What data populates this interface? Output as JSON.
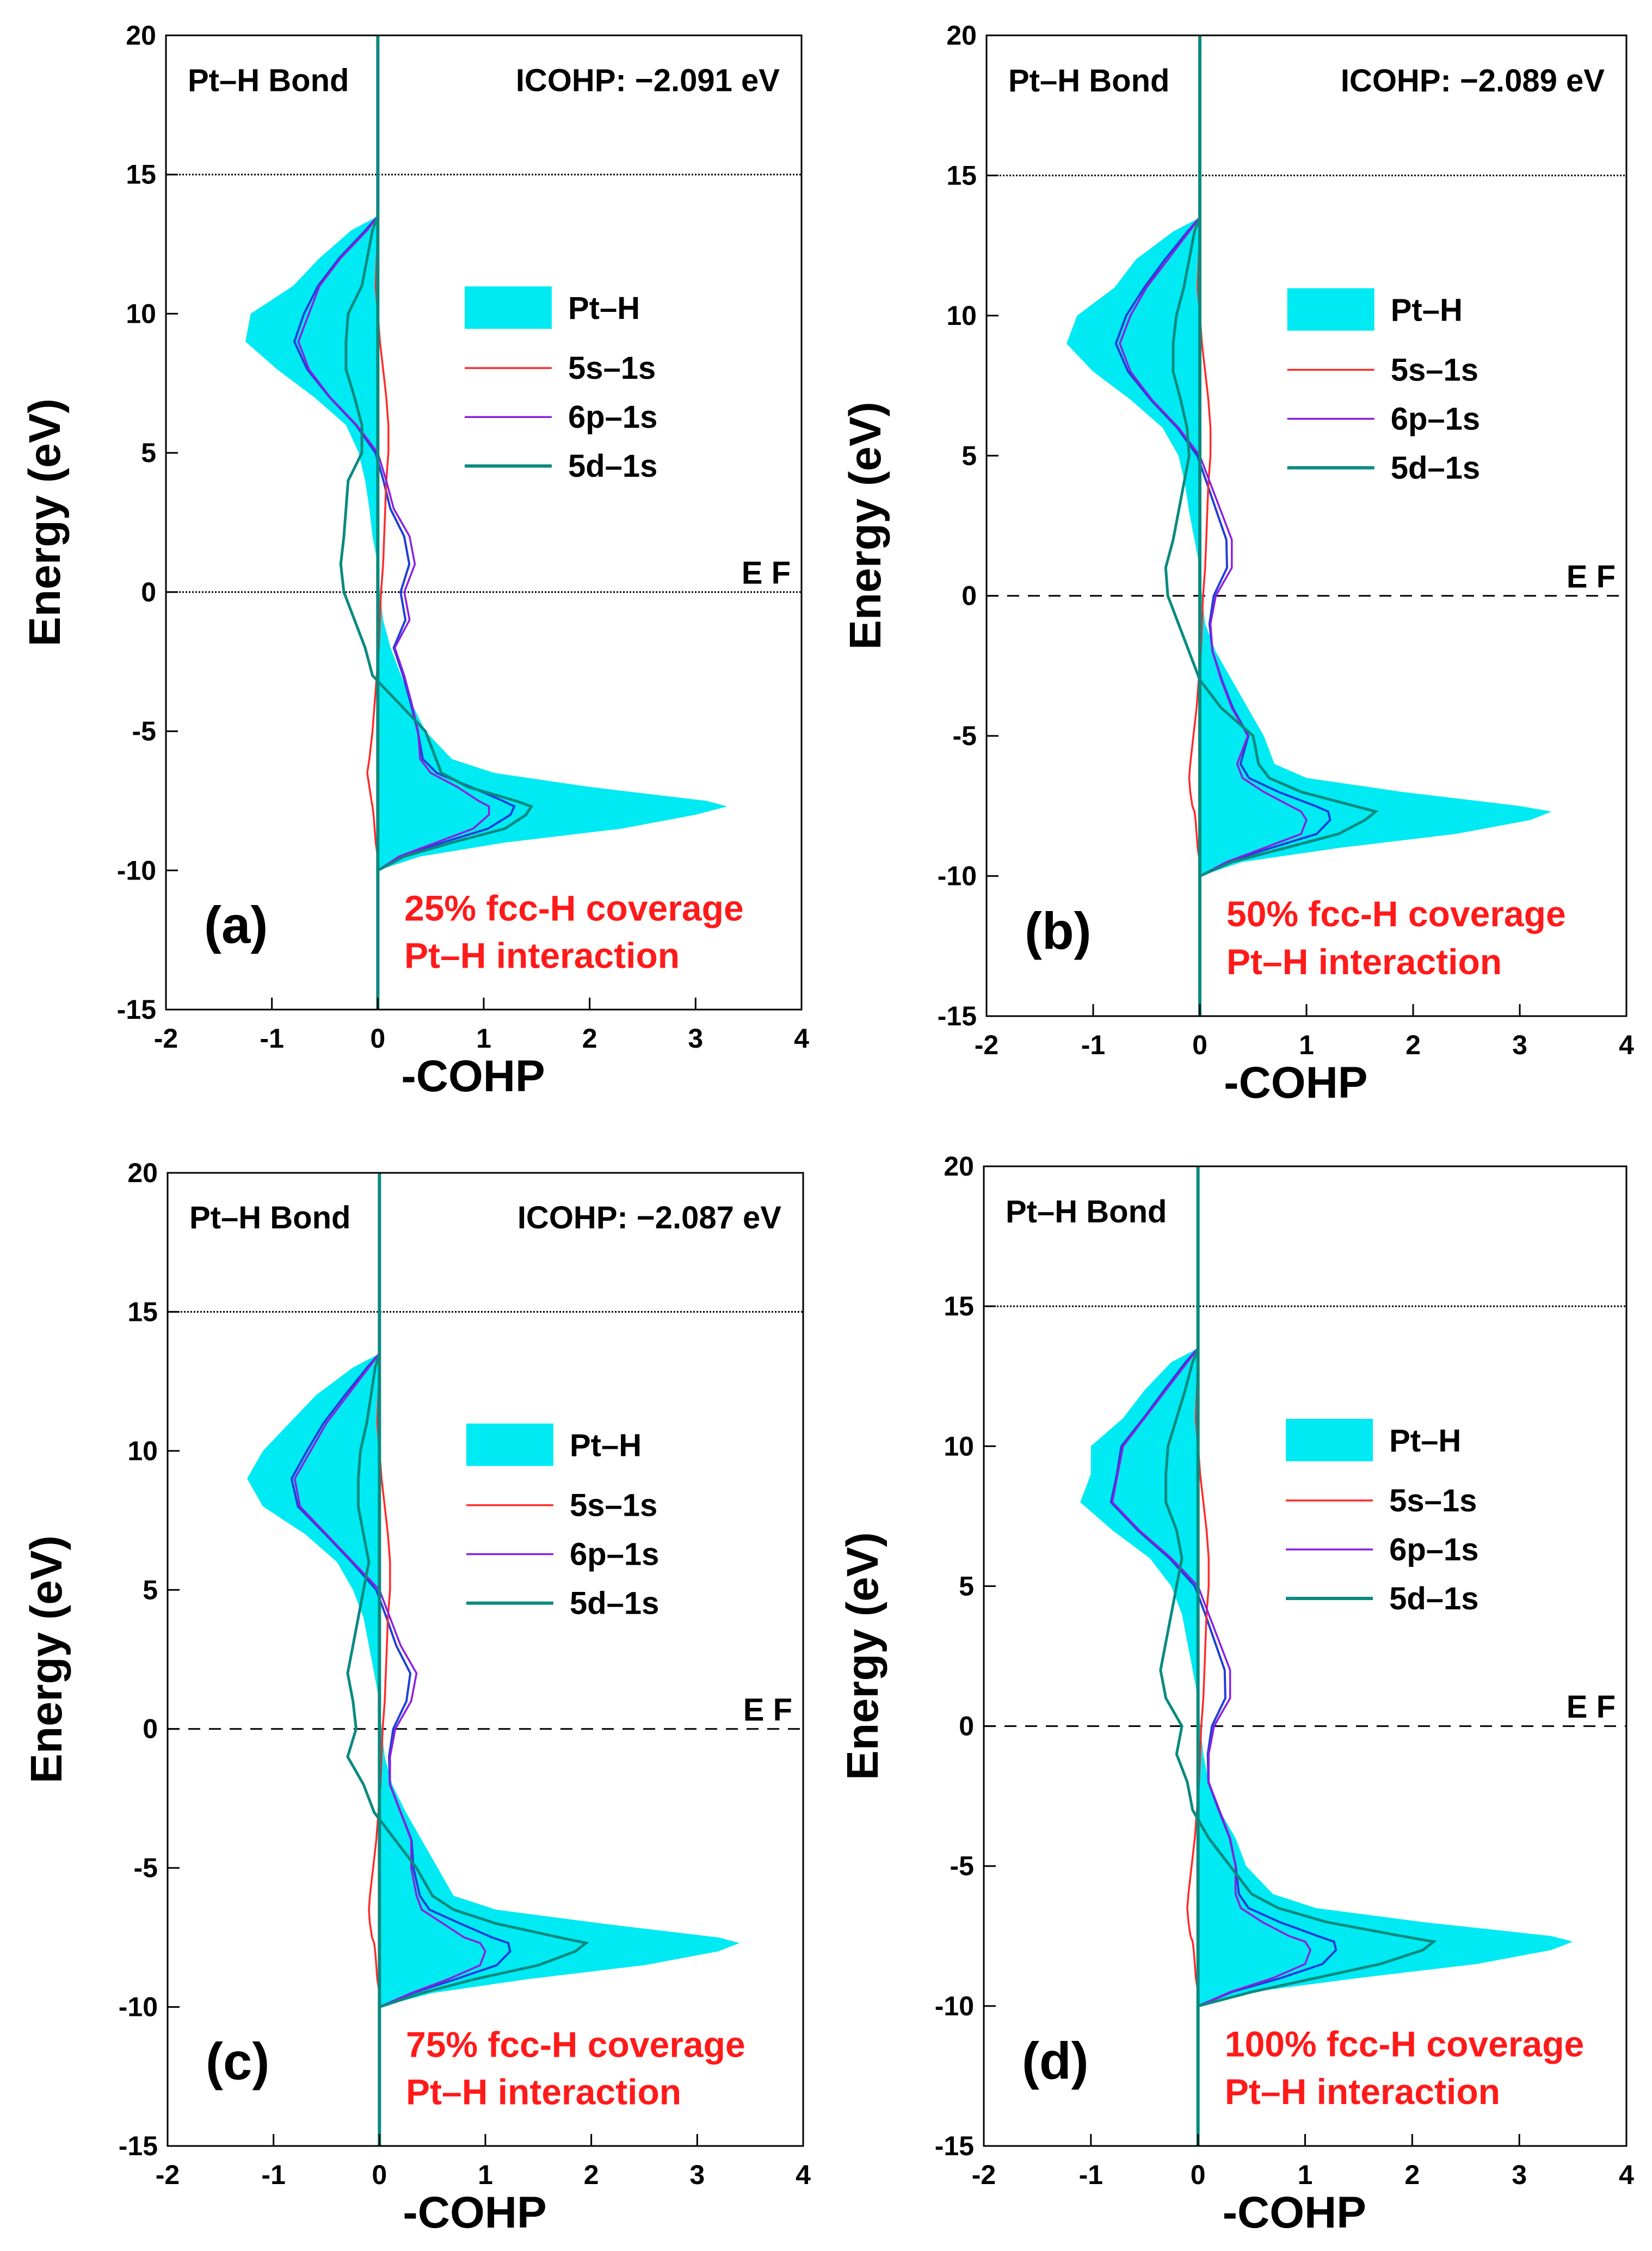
{
  "figure": {
    "colors": {
      "fill": "#00eaf3",
      "s": "#ff2b2b",
      "p": "#8a1fe0",
      "d": "#0a8a80",
      "pt_line": "#1f3fd8",
      "caption": "#ff1a1a",
      "axis": "#000000"
    }
  },
  "chart_data": [
    {
      "id": "a",
      "type": "line",
      "panel_label": "(a)",
      "bond_label": "Pt–H Bond",
      "icohp": "ICOHP: −2.091 eV",
      "coverage": "25% fcc-H coverage",
      "interaction": "Pt–H interaction",
      "ef_label": "E F",
      "xlabel": "-COHP",
      "ylabel": "Energy (eV)",
      "xlim": [
        -2,
        4
      ],
      "ylim": [
        -15,
        20
      ],
      "xticks": [
        "-2",
        "-1",
        "0",
        "1",
        "2",
        "3",
        "4"
      ],
      "yticks": [
        "-15",
        "-10",
        "-5",
        "0",
        "5",
        "10",
        "15",
        "20"
      ],
      "ref_lines": [
        {
          "y": 15,
          "style": "dotted"
        },
        {
          "y": 0,
          "style": "dotted"
        }
      ],
      "legend": [
        {
          "label": "Pt–H",
          "kind": "fill"
        },
        {
          "label": "5s–1s",
          "kind": "s"
        },
        {
          "label": "6p–1s",
          "kind": "p"
        },
        {
          "label": "5d–1s",
          "kind": "d"
        }
      ],
      "energy": [
        -10,
        -9.5,
        -9,
        -8.5,
        -8,
        -7.7,
        -7.5,
        -7,
        -6.5,
        -6,
        -5,
        -4,
        -3,
        -2,
        -1,
        0,
        1,
        2,
        3,
        4,
        5,
        6,
        7,
        8,
        9,
        10,
        11,
        12,
        13,
        13.5
      ],
      "series": [
        {
          "name": "Pt–H",
          "values": [
            0,
            0.4,
            1.2,
            2.3,
            3.0,
            3.3,
            3.1,
            2.0,
            1.1,
            0.7,
            0.45,
            0.32,
            0.22,
            0.12,
            0.05,
            0.02,
            0,
            -0.05,
            -0.08,
            -0.12,
            -0.18,
            -0.3,
            -0.6,
            -0.95,
            -1.25,
            -1.2,
            -0.8,
            -0.55,
            -0.25,
            0
          ]
        },
        {
          "name": "5s–1s",
          "values": [
            0,
            0,
            -0.02,
            -0.03,
            -0.04,
            -0.05,
            -0.06,
            -0.08,
            -0.1,
            -0.08,
            -0.05,
            -0.03,
            -0.01,
            0.01,
            0.02,
            0.03,
            0.05,
            0.06,
            0.07,
            0.08,
            0.1,
            0.1,
            0.08,
            0.05,
            0.02,
            0,
            -0.02,
            -0.01,
            0,
            0
          ]
        },
        {
          "name": "6p–1s",
          "values": [
            0,
            0.2,
            0.55,
            0.9,
            1.05,
            1.05,
            0.95,
            0.75,
            0.5,
            0.4,
            0.38,
            0.32,
            0.25,
            0.16,
            0.3,
            0.25,
            0.35,
            0.3,
            0.15,
            0.08,
            0,
            -0.2,
            -0.45,
            -0.65,
            -0.75,
            -0.65,
            -0.55,
            -0.35,
            -0.1,
            0
          ]
        },
        {
          "name": "5d–1s",
          "values": [
            0,
            0.25,
            0.7,
            1.2,
            1.4,
            1.45,
            1.3,
            0.85,
            0.6,
            0.55,
            0.45,
            0.2,
            -0.05,
            -0.12,
            -0.22,
            -0.32,
            -0.35,
            -0.32,
            -0.3,
            -0.28,
            -0.15,
            -0.15,
            -0.22,
            -0.3,
            -0.3,
            -0.28,
            -0.15,
            -0.1,
            -0.05,
            0
          ]
        }
      ]
    },
    {
      "id": "b",
      "type": "line",
      "panel_label": "(b)",
      "bond_label": "Pt–H Bond",
      "icohp": "ICOHP: −2.089 eV",
      "coverage": "50% fcc-H coverage",
      "interaction": "Pt–H interaction",
      "ef_label": "E F",
      "xlabel": "-COHP",
      "ylabel": "Energy (eV)",
      "xlim": [
        -2,
        4
      ],
      "ylim": [
        -15,
        20
      ],
      "xticks": [
        "-2",
        "-1",
        "0",
        "1",
        "2",
        "3",
        "4"
      ],
      "yticks": [
        "-15",
        "-10",
        "-5",
        "0",
        "5",
        "10",
        "15",
        "20"
      ],
      "ref_lines": [
        {
          "y": 15,
          "style": "dotted"
        },
        {
          "y": 0,
          "style": "dashed"
        }
      ],
      "legend": [
        {
          "label": "Pt–H",
          "kind": "fill"
        },
        {
          "label": "5s–1s",
          "kind": "s"
        },
        {
          "label": "6p–1s",
          "kind": "p"
        },
        {
          "label": "5d–1s",
          "kind": "d"
        }
      ],
      "energy": [
        -10,
        -9.5,
        -9,
        -8.5,
        -8,
        -7.7,
        -7.5,
        -7,
        -6.5,
        -6,
        -5,
        -4,
        -3,
        -2,
        -1,
        0,
        1,
        2,
        3,
        4,
        5,
        6,
        7,
        8,
        9,
        10,
        11,
        12,
        13,
        13.5
      ],
      "series": [
        {
          "name": "Pt–H",
          "values": [
            0,
            0.4,
            1.3,
            2.4,
            3.1,
            3.3,
            3.0,
            1.9,
            1.0,
            0.7,
            0.6,
            0.45,
            0.3,
            0.15,
            0.05,
            0.02,
            0,
            -0.05,
            -0.1,
            -0.14,
            -0.2,
            -0.35,
            -0.65,
            -1.0,
            -1.25,
            -1.15,
            -0.8,
            -0.6,
            -0.25,
            0
          ]
        },
        {
          "name": "5s–1s",
          "values": [
            0,
            0,
            -0.02,
            -0.03,
            -0.04,
            -0.05,
            -0.07,
            -0.09,
            -0.1,
            -0.09,
            -0.06,
            -0.03,
            -0.01,
            0.01,
            0.02,
            0.03,
            0.05,
            0.06,
            0.07,
            0.08,
            0.1,
            0.1,
            0.08,
            0.05,
            0.02,
            0,
            -0.02,
            -0.01,
            0,
            0
          ]
        },
        {
          "name": "6p–1s",
          "values": [
            0,
            0.25,
            0.6,
            0.95,
            1.0,
            0.95,
            0.85,
            0.6,
            0.4,
            0.35,
            0.45,
            0.3,
            0.2,
            0.12,
            0.1,
            0.15,
            0.3,
            0.3,
            0.2,
            0.1,
            0,
            -0.2,
            -0.45,
            -0.65,
            -0.75,
            -0.65,
            -0.5,
            -0.3,
            -0.1,
            0
          ]
        },
        {
          "name": "5d–1s",
          "values": [
            0,
            0.3,
            0.8,
            1.3,
            1.55,
            1.65,
            1.45,
            0.95,
            0.65,
            0.55,
            0.5,
            0.2,
            0,
            -0.1,
            -0.2,
            -0.3,
            -0.32,
            -0.25,
            -0.2,
            -0.15,
            -0.1,
            -0.12,
            -0.18,
            -0.25,
            -0.25,
            -0.22,
            -0.15,
            -0.1,
            -0.05,
            0
          ]
        }
      ]
    },
    {
      "id": "c",
      "type": "line",
      "panel_label": "(c)",
      "bond_label": "Pt–H Bond",
      "icohp": "ICOHP: −2.087 eV",
      "coverage": "75% fcc-H coverage",
      "interaction": "Pt–H interaction",
      "ef_label": "E F",
      "xlabel": "-COHP",
      "ylabel": "Energy (eV)",
      "xlim": [
        -2,
        4
      ],
      "ylim": [
        -15,
        20
      ],
      "xticks": [
        "-2",
        "-1",
        "0",
        "1",
        "2",
        "3",
        "4"
      ],
      "yticks": [
        "-15",
        "-10",
        "-5",
        "0",
        "5",
        "10",
        "15",
        "20"
      ],
      "ref_lines": [
        {
          "y": 15,
          "style": "dotted"
        },
        {
          "y": 0,
          "style": "dashed"
        }
      ],
      "legend": [
        {
          "label": "Pt–H",
          "kind": "fill"
        },
        {
          "label": "5s–1s",
          "kind": "s"
        },
        {
          "label": "6p–1s",
          "kind": "p"
        },
        {
          "label": "5d–1s",
          "kind": "d"
        }
      ],
      "energy": [
        -10,
        -9.5,
        -9,
        -8.5,
        -8,
        -7.7,
        -7.5,
        -7,
        -6.5,
        -6,
        -5,
        -4,
        -3,
        -2,
        -1,
        0,
        1,
        2,
        3,
        4,
        5,
        6,
        7,
        8,
        9,
        10,
        11,
        12,
        13,
        13.5
      ],
      "series": [
        {
          "name": "Pt–H",
          "values": [
            0,
            0.5,
            1.4,
            2.5,
            3.2,
            3.4,
            3.2,
            2.1,
            1.1,
            0.7,
            0.55,
            0.4,
            0.25,
            0.12,
            0.05,
            0.02,
            0,
            -0.05,
            -0.1,
            -0.15,
            -0.25,
            -0.4,
            -0.7,
            -1.1,
            -1.25,
            -1.1,
            -0.85,
            -0.6,
            -0.25,
            0
          ]
        },
        {
          "name": "5s–1s",
          "values": [
            0,
            0,
            -0.02,
            -0.03,
            -0.04,
            -0.05,
            -0.07,
            -0.09,
            -0.1,
            -0.09,
            -0.06,
            -0.03,
            -0.01,
            0.01,
            0.02,
            0.03,
            0.05,
            0.06,
            0.07,
            0.08,
            0.1,
            0.1,
            0.08,
            0.05,
            0.02,
            0,
            -0.02,
            -0.01,
            0,
            0
          ]
        },
        {
          "name": "6p–1s",
          "values": [
            0,
            0.3,
            0.65,
            0.95,
            1.0,
            0.95,
            0.8,
            0.6,
            0.4,
            0.35,
            0.3,
            0.3,
            0.2,
            0.1,
            0.1,
            0.15,
            0.3,
            0.35,
            0.2,
            0.1,
            0,
            -0.25,
            -0.5,
            -0.75,
            -0.8,
            -0.65,
            -0.5,
            -0.3,
            -0.1,
            0
          ]
        },
        {
          "name": "5d–1s",
          "values": [
            0,
            0.4,
            0.9,
            1.5,
            1.85,
            1.95,
            1.7,
            1.1,
            0.7,
            0.5,
            0.35,
            0.15,
            -0.05,
            -0.15,
            -0.3,
            -0.22,
            -0.25,
            -0.3,
            -0.25,
            -0.2,
            -0.15,
            -0.1,
            -0.15,
            -0.2,
            -0.2,
            -0.18,
            -0.12,
            -0.08,
            -0.04,
            0
          ]
        }
      ]
    },
    {
      "id": "d",
      "type": "line",
      "panel_label": "(d)",
      "bond_label": "Pt–H Bond",
      "icohp": "",
      "coverage": "100% fcc-H coverage",
      "interaction": "Pt–H interaction",
      "ef_label": "E F",
      "xlabel": "-COHP",
      "ylabel": "Energy (eV)",
      "xlim": [
        -2,
        4
      ],
      "ylim": [
        -15,
        20
      ],
      "xticks": [
        "-2",
        "-1",
        "0",
        "1",
        "2",
        "3",
        "4"
      ],
      "yticks": [
        "-15",
        "-10",
        "-5",
        "0",
        "5",
        "10",
        "15",
        "20"
      ],
      "ref_lines": [
        {
          "y": 15,
          "style": "dotted"
        },
        {
          "y": 0,
          "style": "dashed"
        }
      ],
      "legend": [
        {
          "label": "Pt–H",
          "kind": "fill"
        },
        {
          "label": "5s–1s",
          "kind": "s"
        },
        {
          "label": "6p–1s",
          "kind": "p"
        },
        {
          "label": "5d–1s",
          "kind": "d"
        }
      ],
      "energy": [
        -10,
        -9.5,
        -9,
        -8.5,
        -8,
        -7.7,
        -7.5,
        -7,
        -6.5,
        -6,
        -5,
        -4,
        -3,
        -2,
        -1,
        0,
        1,
        2,
        3,
        4,
        5,
        6,
        7,
        8,
        9,
        10,
        11,
        12,
        13,
        13.5
      ],
      "series": [
        {
          "name": "Pt–H",
          "values": [
            0,
            0.5,
            1.5,
            2.6,
            3.3,
            3.5,
            3.3,
            2.1,
            1.1,
            0.7,
            0.45,
            0.35,
            0.2,
            0.1,
            0.05,
            0.02,
            0,
            -0.05,
            -0.1,
            -0.15,
            -0.25,
            -0.45,
            -0.8,
            -1.1,
            -1.0,
            -1.0,
            -0.7,
            -0.5,
            -0.25,
            0
          ]
        },
        {
          "name": "5s–1s",
          "values": [
            0,
            0,
            -0.02,
            -0.03,
            -0.04,
            -0.05,
            -0.07,
            -0.09,
            -0.1,
            -0.09,
            -0.06,
            -0.03,
            -0.01,
            0.01,
            0.02,
            0.03,
            0.05,
            0.06,
            0.07,
            0.08,
            0.1,
            0.1,
            0.08,
            0.05,
            0.02,
            0,
            -0.02,
            -0.01,
            0,
            0
          ]
        },
        {
          "name": "6p–1s",
          "values": [
            0,
            0.3,
            0.7,
            1.0,
            1.05,
            1.0,
            0.85,
            0.6,
            0.4,
            0.35,
            0.35,
            0.3,
            0.2,
            0.1,
            0.1,
            0.15,
            0.3,
            0.3,
            0.2,
            0.1,
            0,
            -0.25,
            -0.55,
            -0.8,
            -0.75,
            -0.7,
            -0.5,
            -0.3,
            -0.1,
            0
          ]
        },
        {
          "name": "5d–1s",
          "values": [
            0,
            0.5,
            1.1,
            1.7,
            2.1,
            2.2,
            1.9,
            1.2,
            0.75,
            0.5,
            0.3,
            0.1,
            -0.05,
            -0.1,
            -0.2,
            -0.15,
            -0.3,
            -0.35,
            -0.3,
            -0.25,
            -0.2,
            -0.15,
            -0.2,
            -0.3,
            -0.3,
            -0.28,
            -0.2,
            -0.12,
            -0.05,
            0
          ]
        }
      ]
    }
  ]
}
